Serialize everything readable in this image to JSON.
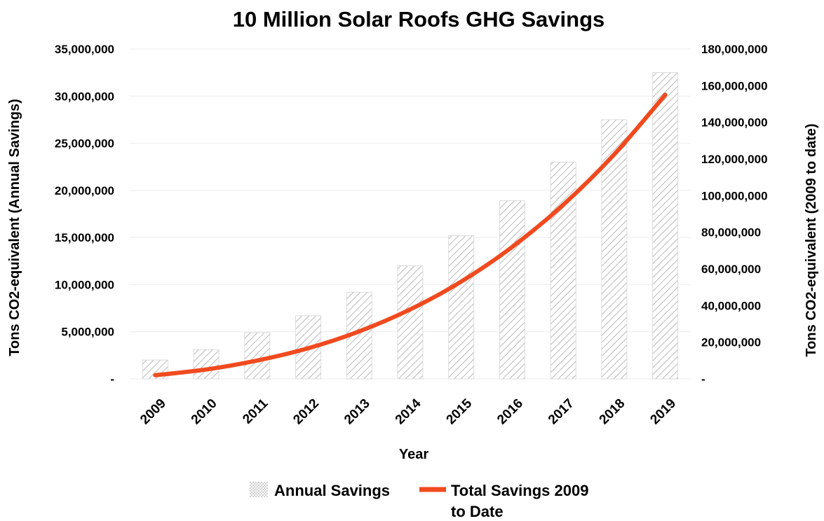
{
  "chart_data": {
    "type": "bar",
    "title": "10 Million Solar Roofs GHG Savings",
    "xlabel": "Year",
    "ylabel_left": "Tons CO2-equivalent (Annual Savings)",
    "ylabel_right": "Tons CO2-equivalent (2009 to date)",
    "categories": [
      "2009",
      "2010",
      "2011",
      "2012",
      "2013",
      "2014",
      "2015",
      "2016",
      "2017",
      "2018",
      "2019"
    ],
    "left_axis": {
      "range": [
        0,
        35000000
      ],
      "ticks": [
        "-",
        "5,000,000",
        "10,000,000",
        "15,000,000",
        "20,000,000",
        "25,000,000",
        "30,000,000",
        "35,000,000"
      ]
    },
    "right_axis": {
      "range": [
        0,
        180000000
      ],
      "ticks": [
        "-",
        "20,000,000",
        "40,000,000",
        "60,000,000",
        "80,000,000",
        "100,000,000",
        "120,000,000",
        "140,000,000",
        "160,000,000",
        "180,000,000"
      ]
    },
    "series": [
      {
        "name": "Annual Savings",
        "type": "bar",
        "axis": "left",
        "values": [
          2000000,
          3100000,
          4900000,
          6700000,
          9200000,
          12000000,
          15200000,
          18900000,
          23000000,
          27500000,
          32500000
        ],
        "color": "#b0b0b0"
      },
      {
        "name": "Total Savings 2009 to Date",
        "type": "line",
        "axis": "right",
        "values": [
          2000000,
          5100000,
          10000000,
          16700000,
          25900000,
          37900000,
          53100000,
          72000000,
          95000000,
          122500000,
          155000000
        ],
        "color": "#f04a1f"
      }
    ],
    "grid": true,
    "legend_position": "bottom"
  }
}
